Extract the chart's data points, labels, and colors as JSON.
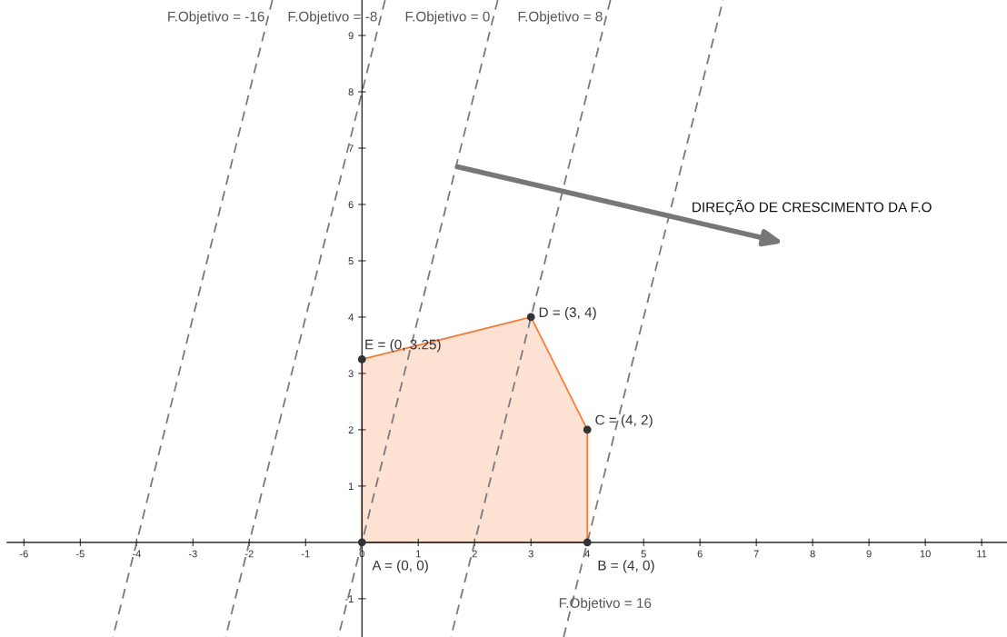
{
  "chart_data": {
    "type": "line",
    "xlim": [
      -6.3,
      11.45
    ],
    "ylim": [
      -1.68,
      9.63
    ],
    "xticks": [
      -6,
      -5,
      -4,
      -3,
      -2,
      -1,
      0,
      1,
      2,
      3,
      4,
      5,
      6,
      7,
      8,
      9,
      10,
      11
    ],
    "yticks": [
      -1,
      1,
      2,
      3,
      4,
      5,
      6,
      7,
      8,
      9
    ],
    "grid": false,
    "line_style": "dashed",
    "marker": "none",
    "series": [
      {
        "name": "F.Objetivo = -16",
        "color": "#7a7a7a",
        "x": [
          -1.59,
          -4.42
        ],
        "values": [
          9.63,
          -1.68
        ]
      },
      {
        "name": "F.Objetivo = -8",
        "color": "#7a7a7a",
        "x": [
          0.41,
          -2.42
        ],
        "values": [
          9.63,
          -1.68
        ]
      },
      {
        "name": "F.Objetivo = 0",
        "color": "#7a7a7a",
        "x": [
          2.41,
          -0.42
        ],
        "values": [
          9.63,
          -1.68
        ]
      },
      {
        "name": "F.Objetivo = 8",
        "color": "#7a7a7a",
        "x": [
          4.41,
          1.58
        ],
        "values": [
          9.63,
          -1.68
        ]
      },
      {
        "name": "F.Objetivo = 16",
        "color": "#7a7a7a",
        "x": [
          3.58,
          6.41
        ],
        "values": [
          -1.68,
          9.63
        ]
      },
      {
        "type": "area",
        "color": "#f47c3c",
        "x": [
          0,
          3,
          4,
          4
        ],
        "values": [
          3.25,
          4,
          2,
          0
        ]
      },
      {
        "type": "scatter",
        "color": "#333333",
        "marker": "circle",
        "x": [
          0,
          4,
          4,
          3,
          0
        ],
        "values": [
          0,
          0,
          2,
          4,
          3.25
        ],
        "value_labels": [
          "A = (0, 0)",
          "B = (4, 0)",
          "C = (4, 2)",
          "D = (3, 4)",
          "E = (0, 3.25)"
        ]
      }
    ],
    "annotations": [
      "DIREÇÃO DE CRESCIMENTO DA F.O"
    ]
  }
}
